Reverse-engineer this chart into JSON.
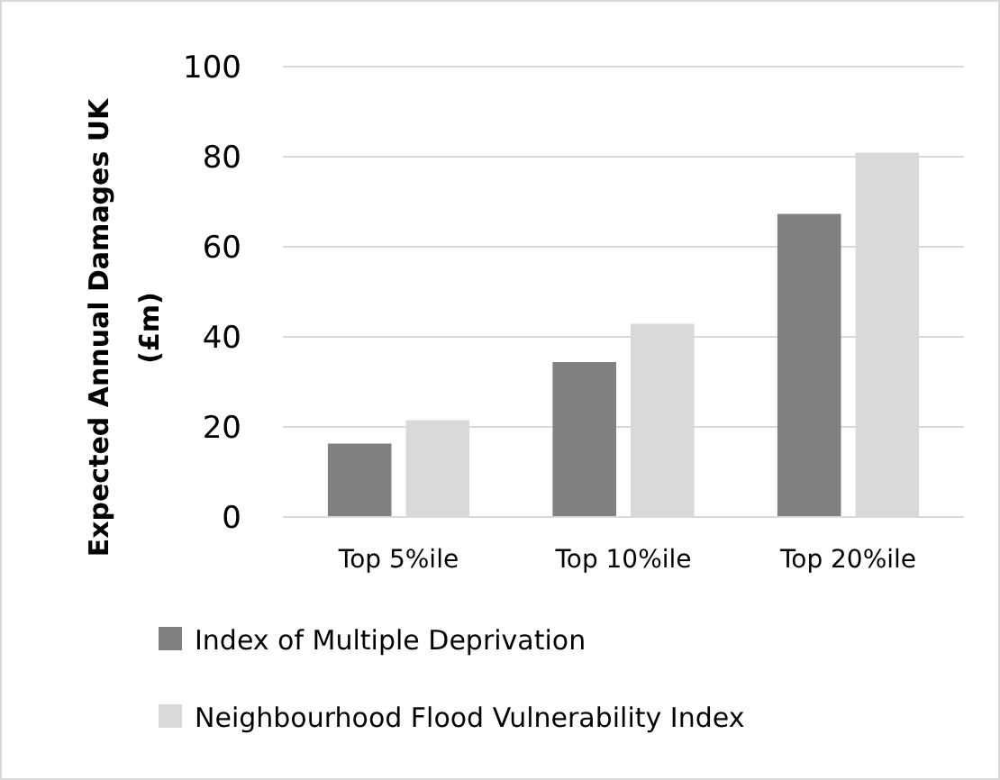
{
  "chart_data": {
    "type": "bar",
    "ylabel": "Expected Annual Damages UK (£m)",
    "categories": [
      "Top 5%ile",
      "Top 10%ile",
      "Top 20%ile"
    ],
    "series": [
      {
        "name": "Index of Multiple Deprivation",
        "color": "#808080",
        "values": [
          16.3,
          34.4,
          67.3
        ]
      },
      {
        "name": "Neighbourhood Flood Vulnerability Index",
        "color": "#d9d9d9",
        "values": [
          21.5,
          42.9,
          80.9
        ]
      }
    ],
    "ylim": [
      0,
      100
    ],
    "yticks": [
      0,
      20,
      40,
      60,
      80,
      100
    ],
    "grid": "y",
    "legend": "bottom"
  }
}
